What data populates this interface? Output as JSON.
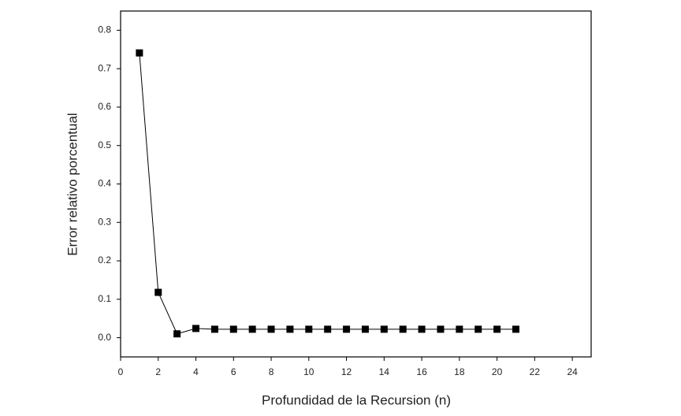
{
  "chart_data": {
    "type": "line",
    "x_label": "Profundidad de la Recursion (n)",
    "y_label": "Error relativo porcentual",
    "x": [
      1,
      2,
      3,
      4,
      5,
      6,
      7,
      8,
      9,
      10,
      11,
      12,
      13,
      14,
      15,
      16,
      17,
      18,
      19,
      20,
      21
    ],
    "series": [
      {
        "color": "#000000",
        "values": [
          0.741,
          0.118,
          0.01,
          0.024,
          0.022,
          0.022,
          0.022,
          0.022,
          0.022,
          0.022,
          0.022,
          0.022,
          0.022,
          0.022,
          0.022,
          0.022,
          0.022,
          0.022,
          0.022,
          0.022,
          0.022
        ]
      }
    ],
    "xlim": [
      0,
      25
    ],
    "ylim": [
      -0.05,
      0.85
    ],
    "xticks": [
      0,
      2,
      4,
      6,
      8,
      10,
      12,
      14,
      16,
      18,
      20,
      22,
      24
    ],
    "yticks": [
      {
        "value": 0,
        "label": "0.0"
      },
      0.1,
      0.2,
      0.3,
      0.4,
      0.5,
      0.6,
      0.7,
      0.8
    ]
  }
}
